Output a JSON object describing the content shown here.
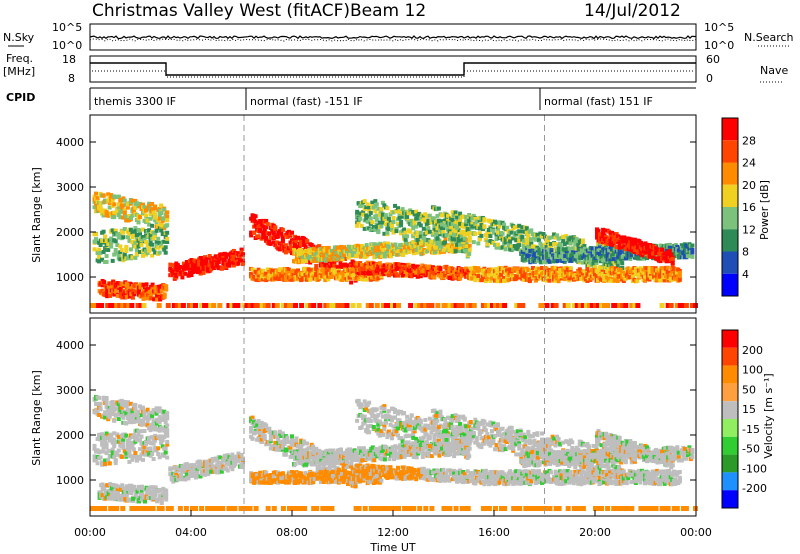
{
  "header": {
    "title": "Christmas Valley West (fitACF)",
    "beam": "Beam 12",
    "date": "14/Jul/2012"
  },
  "noise_panel": {
    "left_label": "N.Sky",
    "right_label": "N.Search",
    "left_ticks": [
      "10^5",
      "10^0"
    ],
    "right_ticks": [
      "10^5",
      "10^0"
    ]
  },
  "freq_panel": {
    "left_label_1": "Freq.",
    "left_label_2": "[MHz]",
    "right_label": "Nave",
    "left_ticks": [
      "18",
      "8"
    ],
    "right_ticks": [
      "60",
      "0"
    ]
  },
  "cpid": {
    "label": "CPID",
    "segments": [
      {
        "text": "themis 3300 IF",
        "start_h": 0.0
      },
      {
        "text": "normal (fast) -151 IF",
        "start_h": 6.1
      },
      {
        "text": "normal (fast) 151 IF",
        "start_h": 18.0
      }
    ]
  },
  "colors": {
    "power": [
      "#0000ff",
      "#1f4fb4",
      "#2e8b57",
      "#7cc17c",
      "#f0d020",
      "#ff8c00",
      "#ff4500",
      "#ff0000"
    ],
    "velocity": [
      "#ff0000",
      "#ff4500",
      "#ff8c00",
      "#ffa040",
      "#bebebe",
      "#90ee60",
      "#32cd32",
      "#2a9a2a",
      "#1e90ff",
      "#0000ff"
    ]
  },
  "chart_data": [
    {
      "type": "heatmap",
      "ylabel": "Slant Range [km]",
      "colorbar_label": "Power [dB]",
      "colorbar_ticks": [
        "28",
        "24",
        "20",
        "16",
        "12",
        "8",
        "4"
      ],
      "x_ticks": [
        "00:00",
        "04:00",
        "08:00",
        "12:00",
        "16:00",
        "20:00",
        "00:00"
      ],
      "y_ticks": [
        "1000",
        "2000",
        "3000",
        "4000"
      ],
      "ylim": [
        200,
        4600
      ],
      "xlim_hours": [
        0,
        24
      ]
    },
    {
      "type": "heatmap",
      "ylabel": "Slant Range [km]",
      "xlabel": "Time UT",
      "colorbar_label": "Velocity [m s⁻¹]",
      "colorbar_ticks": [
        "200",
        "100",
        "50",
        "15",
        "-15",
        "-50",
        "-100",
        "-200"
      ],
      "x_ticks": [
        "00:00",
        "04:00",
        "08:00",
        "12:00",
        "16:00",
        "20:00",
        "00:00"
      ],
      "y_ticks": [
        "1000",
        "2000",
        "3000",
        "4000"
      ],
      "ylim": [
        200,
        4600
      ],
      "xlim_hours": [
        0,
        24
      ]
    }
  ]
}
